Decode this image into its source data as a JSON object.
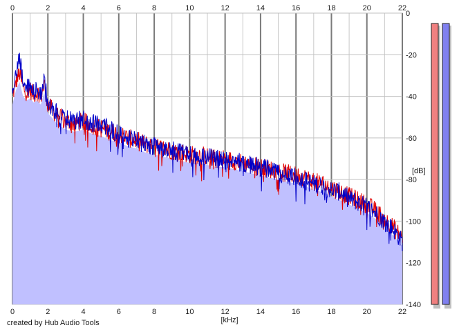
{
  "chart_data": {
    "type": "area",
    "xlabel": "[kHz]",
    "ylabel": "[dB]",
    "xlim": [
      0,
      22
    ],
    "ylim": [
      -140,
      0
    ],
    "x_ticks": [
      0,
      2,
      4,
      6,
      8,
      10,
      12,
      14,
      16,
      18,
      20,
      22
    ],
    "y_ticks": [
      0,
      -20,
      -40,
      -60,
      -80,
      -100,
      -120,
      -140
    ],
    "y_tick_labels": [
      "0",
      "-20",
      "-40",
      "-60",
      "-80",
      "-100",
      "-120",
      "-140"
    ],
    "grid": true,
    "series": [
      {
        "color": "#e00000",
        "x": [
          0.0,
          0.2,
          0.4,
          0.6,
          0.8,
          1.0,
          1.2,
          1.4,
          1.6,
          1.8,
          2.0,
          2.5,
          3.0,
          3.5,
          4.0,
          4.5,
          5.0,
          5.5,
          6.0,
          6.5,
          7.0,
          7.5,
          8.0,
          8.5,
          9.0,
          9.5,
          10.0,
          10.5,
          11.0,
          11.5,
          12.0,
          12.5,
          13.0,
          13.5,
          14.0,
          14.5,
          15.0,
          15.5,
          16.0,
          16.5,
          17.0,
          17.5,
          18.0,
          18.5,
          19.0,
          19.5,
          20.0,
          20.5,
          21.0,
          21.5,
          22.0
        ],
        "values": [
          -40,
          -33,
          -29,
          -36,
          -38,
          -37,
          -39,
          -38,
          -40,
          -34,
          -44,
          -49,
          -52,
          -53,
          -52,
          -54,
          -55,
          -57,
          -58,
          -60,
          -61,
          -63,
          -64,
          -65,
          -66,
          -67,
          -68,
          -68,
          -69,
          -70,
          -70,
          -71,
          -72,
          -73,
          -74,
          -75,
          -76,
          -77,
          -78,
          -79,
          -81,
          -82,
          -84,
          -86,
          -88,
          -90,
          -92,
          -95,
          -99,
          -103,
          -108
        ]
      },
      {
        "color": "#0000c8",
        "x": [
          0.0,
          0.2,
          0.4,
          0.6,
          0.8,
          1.0,
          1.2,
          1.4,
          1.6,
          1.8,
          2.0,
          2.5,
          3.0,
          3.5,
          4.0,
          4.5,
          5.0,
          5.5,
          6.0,
          6.5,
          7.0,
          7.5,
          8.0,
          8.5,
          9.0,
          9.5,
          10.0,
          10.5,
          11.0,
          11.5,
          12.0,
          12.5,
          13.0,
          13.5,
          14.0,
          14.5,
          15.0,
          15.5,
          16.0,
          16.5,
          17.0,
          17.5,
          18.0,
          18.5,
          19.0,
          19.5,
          20.0,
          20.5,
          21.0,
          21.5,
          22.0
        ],
        "values": [
          -38,
          -30,
          -22,
          -33,
          -36,
          -35,
          -38,
          -37,
          -39,
          -32,
          -43,
          -48,
          -51,
          -52,
          -51,
          -53,
          -54,
          -56,
          -58,
          -60,
          -61,
          -63,
          -64,
          -65,
          -66,
          -67,
          -68,
          -69,
          -69,
          -70,
          -71,
          -71,
          -72,
          -73,
          -74,
          -75,
          -77,
          -78,
          -79,
          -80,
          -82,
          -83,
          -85,
          -86,
          -89,
          -91,
          -93,
          -96,
          -100,
          -104,
          -110
        ]
      }
    ],
    "level_meters": [
      {
        "color": "#f08080",
        "level": -5
      },
      {
        "color": "#8080f0",
        "level": -5
      }
    ]
  },
  "credit": "created by Hub Audio Tools"
}
